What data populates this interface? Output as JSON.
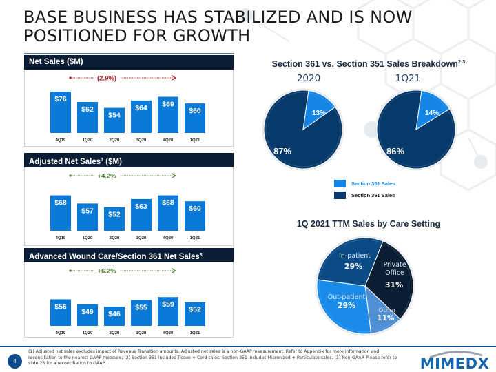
{
  "slide": {
    "title": "BASE BUSINESS HAS STABILIZED AND IS NOW POSITIONED FOR GROWTH",
    "page_number": "4",
    "logo_text": "MIMEDX",
    "footnotes": "(1) Adjusted net sales excludes impact of Revenue Transition amounts. Adjusted net sales is a non-GAAP measurement. Refer to Appendix for more information and reconciliation to the nearest GAAP measure; (2) Section 361 includes Tissue + Cord sales. Section 351 includes Micronized + Particulate sales. (3) Non-GAAP. Please refer to slide 23 for a reconciliation to GAAP.",
    "colors": {
      "bar": "#0b7ad6",
      "header_bg": "#0c1e35",
      "negative_trend": "#b0121b",
      "positive_trend": "#4f7d2e",
      "section_351": "#1585e6",
      "section_361": "#073a6b",
      "care_inpatient": "#0a4a85",
      "care_private_office": "#0b1d33",
      "care_outpatient": "#1b8bea",
      "care_other": "#4f8fd3"
    }
  },
  "panels": {
    "net_sales": {
      "header": "Net Sales ($M)",
      "header_sup": ""
    },
    "adjusted_net_sales": {
      "header": "Adjusted Net Sales",
      "header_sup": "1",
      "header_suffix": " ($M)"
    },
    "awc_net_sales": {
      "header": "Advanced Wound Care/Section 361 Net Sales",
      "header_sup": "3"
    }
  },
  "right": {
    "breakdown_title": "Section 361 vs. Section 351 Sales Breakdown",
    "breakdown_title_sup": "2,3",
    "care_title": "1Q 2021 TTM Sales by Care Setting",
    "legend": [
      {
        "label": "Section 351 Sales",
        "color": "#1585e6",
        "text_color": "#1585e6"
      },
      {
        "label": "Section 361 Sales",
        "color": "#073a6b",
        "text_color": "#111111"
      }
    ]
  },
  "chart_data": [
    {
      "type": "bar",
      "title": "Net Sales ($M)",
      "categories": [
        "4Q19",
        "1Q20",
        "2Q20",
        "3Q20",
        "4Q20",
        "1Q21"
      ],
      "values": [
        76,
        62,
        54,
        64,
        69,
        60
      ],
      "value_labels": [
        "$76",
        "$62",
        "$54",
        "$64",
        "$69",
        "$60"
      ],
      "trend_label": "(2.9%)",
      "trend_direction": "negative",
      "xlabel": "",
      "ylabel": "",
      "ylim": [
        0,
        80
      ]
    },
    {
      "type": "bar",
      "title": "Adjusted Net Sales ($M)",
      "categories": [
        "4Q19",
        "1Q20",
        "2Q20",
        "3Q20",
        "4Q20",
        "1Q21"
      ],
      "values": [
        68,
        57,
        52,
        63,
        68,
        60
      ],
      "value_labels": [
        "$68",
        "$57",
        "$52",
        "$63",
        "$68",
        "$60"
      ],
      "trend_label": "+4.2%",
      "trend_direction": "positive",
      "xlabel": "",
      "ylabel": "",
      "ylim": [
        0,
        80
      ]
    },
    {
      "type": "bar",
      "title": "Advanced Wound Care/Section 361 Net Sales",
      "categories": [
        "4Q19",
        "1Q20",
        "2Q20",
        "3Q20",
        "4Q20",
        "1Q21"
      ],
      "values": [
        56,
        49,
        46,
        55,
        59,
        52
      ],
      "value_labels": [
        "$56",
        "$49",
        "$46",
        "$55",
        "$59",
        "$52"
      ],
      "trend_label": "+6.2%",
      "trend_direction": "positive",
      "xlabel": "",
      "ylabel": "",
      "ylim": [
        0,
        80
      ]
    },
    {
      "type": "pie",
      "title": "2020",
      "slices": [
        {
          "label": "Section 351 Sales",
          "value": 13,
          "display": "13%"
        },
        {
          "label": "Section 361 Sales",
          "value": 87,
          "display": "87%"
        }
      ]
    },
    {
      "type": "pie",
      "title": "1Q21",
      "slices": [
        {
          "label": "Section 351 Sales",
          "value": 14,
          "display": "14%"
        },
        {
          "label": "Section 361 Sales",
          "value": 86,
          "display": "86%"
        }
      ]
    },
    {
      "type": "pie",
      "title": "1Q 2021 TTM Sales by Care Setting",
      "slices": [
        {
          "label": "Private Office",
          "value": 31,
          "display": "31%"
        },
        {
          "label": "Other",
          "value": 11,
          "display": "11%"
        },
        {
          "label": "Out-patient",
          "value": 29,
          "display": "29%"
        },
        {
          "label": "In-patient",
          "value": 29,
          "display": "29%"
        }
      ]
    }
  ]
}
